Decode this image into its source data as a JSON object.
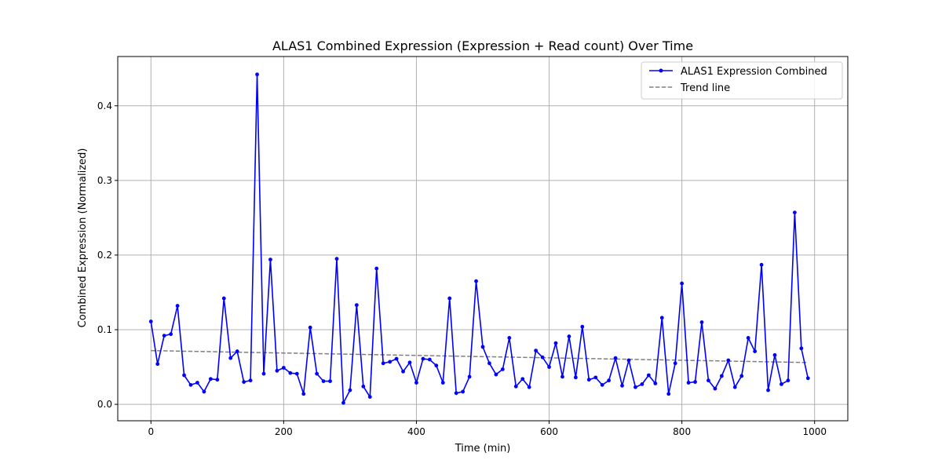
{
  "chart_data": {
    "type": "line",
    "title": "ALAS1 Combined Expression (Expression + Read count) Over Time",
    "xlabel": "Time (min)",
    "ylabel": "Combined Expression (Normalized)",
    "xlim": [
      -50,
      1050
    ],
    "ylim": [
      -0.022,
      0.466
    ],
    "xticks": [
      0,
      200,
      400,
      600,
      800,
      1000
    ],
    "yticks": [
      0.0,
      0.1,
      0.2,
      0.3,
      0.4
    ],
    "grid": true,
    "legend_position": "top-right",
    "series": [
      {
        "name": "ALAS1 Expression Combined",
        "color": "#0000ff",
        "marker": "circle",
        "x": [
          0,
          10,
          20,
          30,
          40,
          50,
          60,
          70,
          80,
          90,
          100,
          110,
          120,
          130,
          140,
          150,
          160,
          170,
          180,
          190,
          200,
          210,
          220,
          230,
          240,
          250,
          260,
          270,
          280,
          290,
          300,
          310,
          320,
          330,
          340,
          350,
          360,
          370,
          380,
          390,
          400,
          410,
          420,
          430,
          440,
          450,
          460,
          470,
          480,
          490,
          500,
          510,
          520,
          530,
          540,
          550,
          560,
          570,
          580,
          590,
          600,
          610,
          620,
          630,
          640,
          650,
          660,
          670,
          680,
          690,
          700,
          710,
          720,
          730,
          740,
          750,
          760,
          770,
          780,
          790,
          800,
          810,
          820,
          830,
          840,
          850,
          860,
          870,
          880,
          890,
          900,
          910,
          920,
          930,
          940,
          950,
          960,
          970,
          980,
          990
        ],
        "y": [
          0.111,
          0.054,
          0.092,
          0.094,
          0.132,
          0.039,
          0.026,
          0.029,
          0.017,
          0.034,
          0.033,
          0.142,
          0.062,
          0.071,
          0.03,
          0.032,
          0.442,
          0.041,
          0.194,
          0.045,
          0.049,
          0.042,
          0.041,
          0.014,
          0.103,
          0.041,
          0.031,
          0.031,
          0.195,
          0.002,
          0.019,
          0.133,
          0.024,
          0.01,
          0.182,
          0.055,
          0.057,
          0.061,
          0.044,
          0.056,
          0.029,
          0.061,
          0.06,
          0.052,
          0.029,
          0.142,
          0.015,
          0.017,
          0.037,
          0.165,
          0.077,
          0.055,
          0.04,
          0.047,
          0.089,
          0.024,
          0.034,
          0.023,
          0.072,
          0.063,
          0.05,
          0.082,
          0.037,
          0.091,
          0.036,
          0.104,
          0.033,
          0.036,
          0.026,
          0.032,
          0.062,
          0.025,
          0.059,
          0.023,
          0.027,
          0.039,
          0.028,
          0.116,
          0.014,
          0.055,
          0.162,
          0.029,
          0.03,
          0.11,
          0.032,
          0.021,
          0.038,
          0.059,
          0.023,
          0.038,
          0.089,
          0.071,
          0.187,
          0.019,
          0.066,
          0.027,
          0.032,
          0.257,
          0.075,
          0.035
        ]
      },
      {
        "name": "Trend line",
        "color": "#808080",
        "style": "dashed",
        "x": [
          0,
          990
        ],
        "y": [
          0.072,
          0.056
        ]
      }
    ]
  }
}
